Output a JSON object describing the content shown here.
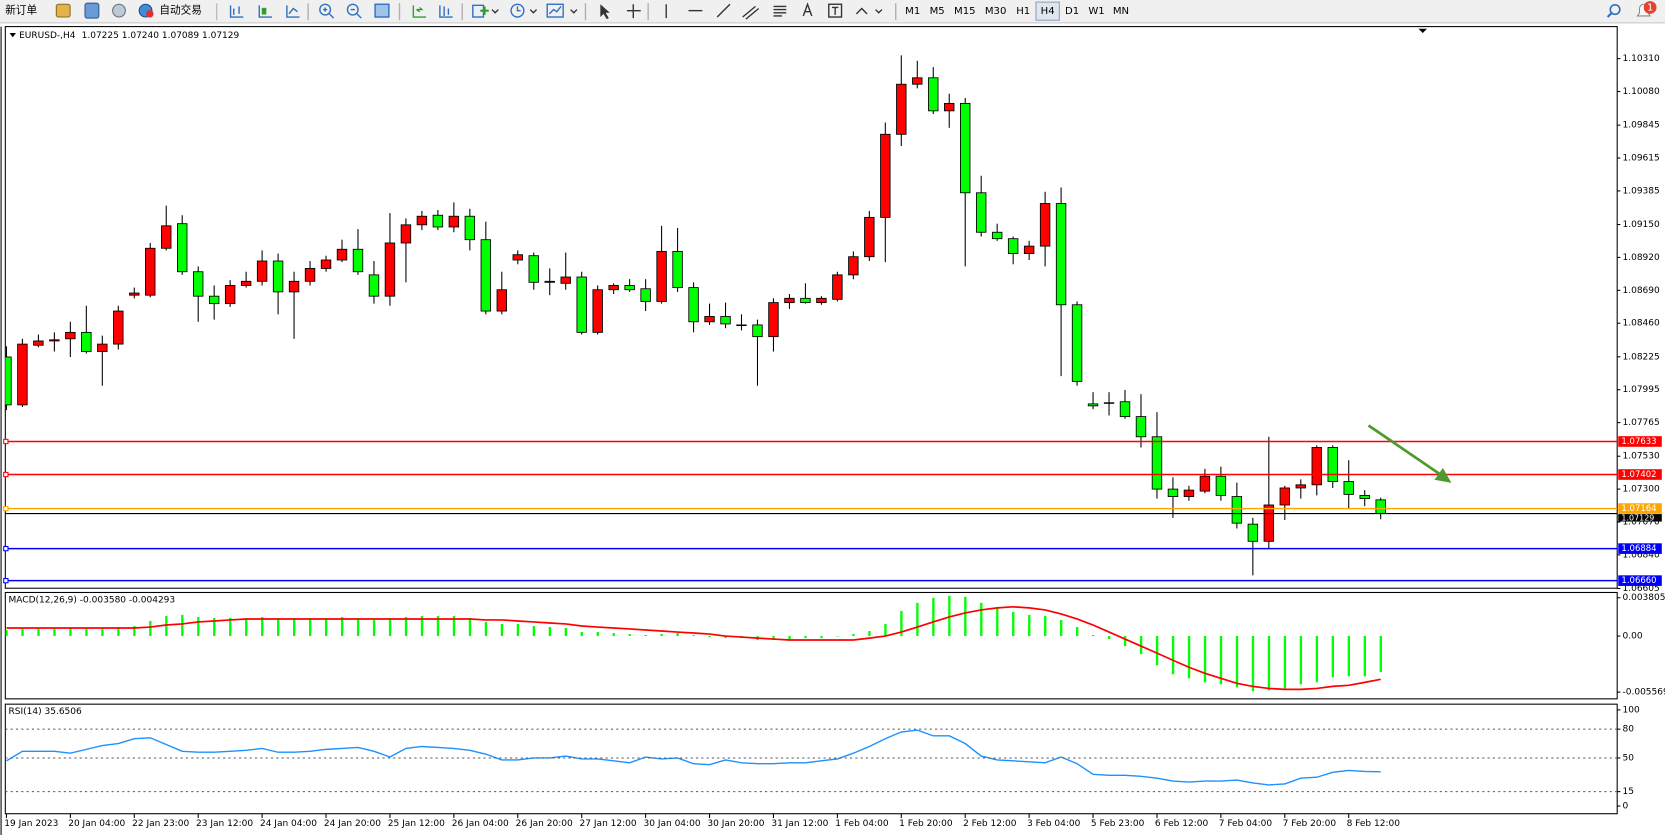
{
  "toolbar": {
    "new_order": "新订单",
    "auto_trading": "自动交易",
    "timeframes": [
      "M1",
      "M5",
      "M15",
      "M30",
      "H1",
      "H4",
      "D1",
      "W1",
      "MN"
    ],
    "active_timeframe": "H4",
    "badge": "1"
  },
  "chart_data": [
    {
      "type": "candlestick",
      "title": "EURUSD-,H4",
      "subtitle": "1.07225 1.07240 1.07089 1.07129",
      "up_color": "#ff0000",
      "down_color": "#00ff00",
      "ohlc": [
        [
          1.08224,
          1.08299,
          1.07852,
          1.07889
        ],
        [
          1.07889,
          1.08351,
          1.07874,
          1.08314
        ],
        [
          1.08306,
          1.08381,
          1.08291,
          1.08336
        ],
        [
          1.08336,
          1.08396,
          1.08262,
          1.08344
        ],
        [
          1.08351,
          1.0847,
          1.08224,
          1.08396
        ],
        [
          1.08396,
          1.08582,
          1.08247,
          1.08262
        ],
        [
          1.08262,
          1.08373,
          1.08023,
          1.08314
        ],
        [
          1.08314,
          1.08582,
          1.08276,
          1.08545
        ],
        [
          1.08656,
          1.08709,
          1.08634,
          1.08671
        ],
        [
          1.08656,
          1.09021,
          1.08641,
          1.08984
        ],
        [
          1.08984,
          1.09282,
          1.08969,
          1.09141
        ],
        [
          1.09156,
          1.09215,
          1.08798,
          1.0882
        ],
        [
          1.0882,
          1.08857,
          1.0847,
          1.08649
        ],
        [
          1.08649,
          1.08724,
          1.08485,
          1.08597
        ],
        [
          1.08597,
          1.08761,
          1.08574,
          1.08724
        ],
        [
          1.08724,
          1.0882,
          1.08709,
          1.08753
        ],
        [
          1.08753,
          1.08969,
          1.08724,
          1.08895
        ],
        [
          1.08895,
          1.08947,
          1.08522,
          1.08679
        ],
        [
          1.08679,
          1.0882,
          1.08351,
          1.08753
        ],
        [
          1.08753,
          1.08895,
          1.08724,
          1.08843
        ],
        [
          1.08843,
          1.08932,
          1.0882,
          1.08902
        ],
        [
          1.08902,
          1.09044,
          1.08887,
          1.08977
        ],
        [
          1.08977,
          1.09118,
          1.08798,
          1.0882
        ],
        [
          1.08798,
          1.08895,
          1.08597,
          1.08649
        ],
        [
          1.08649,
          1.0923,
          1.08582,
          1.09021
        ],
        [
          1.09021,
          1.09193,
          1.08746,
          1.09148
        ],
        [
          1.09148,
          1.09245,
          1.09111,
          1.09208
        ],
        [
          1.09215,
          1.09252,
          1.09111,
          1.09133
        ],
        [
          1.09133,
          1.09305,
          1.09096,
          1.09208
        ],
        [
          1.09208,
          1.0926,
          1.08969,
          1.09044
        ],
        [
          1.09044,
          1.0917,
          1.08522,
          1.08545
        ],
        [
          1.08545,
          1.0882,
          1.08522,
          1.08694
        ],
        [
          1.08902,
          1.08969,
          1.08872,
          1.08939
        ],
        [
          1.08932,
          1.08954,
          1.08694,
          1.08746
        ],
        [
          1.08746,
          1.08843,
          1.08656,
          1.08753
        ],
        [
          1.08739,
          1.08954,
          1.08694,
          1.08783
        ],
        [
          1.08783,
          1.0882,
          1.08381,
          1.08396
        ],
        [
          1.08396,
          1.08724,
          1.08381,
          1.08694
        ],
        [
          1.08694,
          1.08739,
          1.08664,
          1.08724
        ],
        [
          1.08724,
          1.08768,
          1.08679,
          1.08694
        ],
        [
          1.08701,
          1.08768,
          1.08545,
          1.08612
        ],
        [
          1.08612,
          1.09141,
          1.08597,
          1.08962
        ],
        [
          1.08962,
          1.09126,
          1.08679,
          1.08709
        ],
        [
          1.08709,
          1.08746,
          1.08396,
          1.0847
        ],
        [
          1.0847,
          1.08597,
          1.08448,
          1.08507
        ],
        [
          1.08507,
          1.08604,
          1.08425,
          1.08455
        ],
        [
          1.08448,
          1.08522,
          1.0841,
          1.08448
        ],
        [
          1.08448,
          1.08485,
          1.08023,
          1.08366
        ],
        [
          1.08366,
          1.08634,
          1.08262,
          1.08604
        ],
        [
          1.08604,
          1.08664,
          1.0856,
          1.08634
        ],
        [
          1.08634,
          1.08739,
          1.08597,
          1.08604
        ],
        [
          1.08604,
          1.08649,
          1.08589,
          1.08634
        ],
        [
          1.08627,
          1.0882,
          1.08612,
          1.08798
        ],
        [
          1.08798,
          1.08962,
          1.08768,
          1.08925
        ],
        [
          1.08925,
          1.09245,
          1.08895,
          1.092
        ],
        [
          1.092,
          1.09863,
          1.08887,
          1.09781
        ],
        [
          1.09781,
          1.10333,
          1.09699,
          1.10131
        ],
        [
          1.10131,
          1.10295,
          1.10102,
          1.10176
        ],
        [
          1.10176,
          1.10251,
          1.09923,
          1.09945
        ],
        [
          1.09945,
          1.10064,
          1.09826,
          1.09997
        ],
        [
          1.09997,
          1.10035,
          1.08857,
          1.09372
        ],
        [
          1.09372,
          1.09491,
          1.09066,
          1.09096
        ],
        [
          1.09096,
          1.09156,
          1.09036,
          1.09051
        ],
        [
          1.09051,
          1.09066,
          1.08872,
          1.08947
        ],
        [
          1.08947,
          1.09036,
          1.08902,
          1.08999
        ],
        [
          1.08999,
          1.09379,
          1.08857,
          1.09297
        ],
        [
          1.09297,
          1.09409,
          1.0809,
          1.08589
        ],
        [
          1.08589,
          1.08612,
          1.08023,
          1.08053
        ],
        [
          1.07896,
          1.07978,
          1.07859,
          1.07882
        ],
        [
          1.07904,
          1.07978,
          1.07815,
          1.07904
        ],
        [
          1.07911,
          1.07993,
          1.07792,
          1.07807
        ],
        [
          1.07807,
          1.07964,
          1.07591,
          1.07666
        ],
        [
          1.07666,
          1.07838,
          1.07234,
          1.073
        ],
        [
          1.073,
          1.07382,
          1.07099,
          1.07248
        ],
        [
          1.07248,
          1.07323,
          1.07219,
          1.07293
        ],
        [
          1.07286,
          1.07442,
          1.07271,
          1.0739
        ],
        [
          1.0739,
          1.07457,
          1.07219,
          1.07256
        ],
        [
          1.07248,
          1.07345,
          1.07025,
          1.07062
        ],
        [
          1.07055,
          1.07099,
          1.06697,
          1.06935
        ],
        [
          1.06935,
          1.07666,
          1.06883,
          1.07189
        ],
        [
          1.07189,
          1.07323,
          1.07084,
          1.07308
        ],
        [
          1.07308,
          1.07368,
          1.07234,
          1.0733
        ],
        [
          1.0733,
          1.07606,
          1.07256,
          1.07591
        ],
        [
          1.07591,
          1.07606,
          1.07308,
          1.07353
        ],
        [
          1.07353,
          1.07502,
          1.07159,
          1.07263
        ],
        [
          1.07256,
          1.07293,
          1.07181,
          1.07234
        ],
        [
          1.07225,
          1.0724,
          1.07089,
          1.07129
        ]
      ],
      "xlim": [
        -0.07,
        100.8
      ],
      "xticks": [
        {
          "value": 0,
          "label": "19 Jan 2023"
        },
        {
          "value": 4,
          "label": "20 Jan 04:00"
        },
        {
          "value": 8,
          "label": "22 Jan 23:00"
        },
        {
          "value": 12,
          "label": "23 Jan 12:00"
        },
        {
          "value": 16,
          "label": "24 Jan 04:00"
        },
        {
          "value": 20,
          "label": "24 Jan 20:00"
        },
        {
          "value": 24,
          "label": "25 Jan 12:00"
        },
        {
          "value": 28,
          "label": "26 Jan 04:00"
        },
        {
          "value": 32,
          "label": "26 Jan 20:00"
        },
        {
          "value": 36,
          "label": "27 Jan 12:00"
        },
        {
          "value": 40,
          "label": "30 Jan 04:00"
        },
        {
          "value": 44,
          "label": "30 Jan 20:00"
        },
        {
          "value": 48,
          "label": "31 Jan 12:00"
        },
        {
          "value": 52,
          "label": "1 Feb 04:00"
        },
        {
          "value": 56,
          "label": "1 Feb 20:00"
        },
        {
          "value": 60,
          "label": "2 Feb 12:00"
        },
        {
          "value": 64,
          "label": "3 Feb 04:00"
        },
        {
          "value": 68,
          "label": "5 Feb 23:00"
        },
        {
          "value": 72,
          "label": "6 Feb 12:00"
        },
        {
          "value": 76,
          "label": "7 Feb 04:00"
        },
        {
          "value": 80,
          "label": "7 Feb 20:00"
        },
        {
          "value": 84,
          "label": "8 Feb 12:00"
        }
      ],
      "ylim": [
        1.06607,
        1.10534
      ],
      "yticks": [
        {
          "value": 1.1031,
          "label": "1.10310"
        },
        {
          "value": 1.1008,
          "label": "1.10080"
        },
        1.09845,
        {
          "value": 1.09615,
          "label": "1.09615"
        },
        1.09385,
        {
          "value": 1.0915,
          "label": "1.09150"
        },
        {
          "value": 1.0892,
          "label": "1.08920"
        },
        {
          "value": 1.0869,
          "label": "1.08690"
        },
        {
          "value": 1.0846,
          "label": "1.08460"
        },
        1.08225,
        1.07995,
        1.07765,
        {
          "value": 1.0753,
          "label": "1.07530"
        },
        {
          "value": 1.073,
          "label": "1.07300"
        },
        {
          "value": 1.0707,
          "label": "1.07070"
        },
        {
          "value": 1.0684,
          "label": "1.06840"
        },
        1.06605
      ],
      "levels": [
        {
          "value": 1.07633,
          "color": "#ff0000"
        },
        {
          "value": 1.07402,
          "color": "#ff0000"
        },
        {
          "value": 1.07164,
          "color": "#ffa500"
        },
        {
          "value": 1.06884,
          "color": "#0000ff"
        },
        {
          "value": 1.0666,
          "label": "1.06660",
          "color": "#0000ff"
        }
      ],
      "current_price": 1.07129
    },
    {
      "type": "macd",
      "title": "MACD(12,26,9) -0.003580 -0.004293",
      "histogram": {
        "color": "#00ff00",
        "values": [
          0.0006,
          0.0007,
          0.0007,
          0.0007,
          0.0008,
          0.0007,
          0.0007,
          0.0009,
          0.001,
          0.0015,
          0.002,
          0.0021,
          0.0019,
          0.0018,
          0.0018,
          0.0018,
          0.0019,
          0.0018,
          0.0018,
          0.0018,
          0.0018,
          0.0019,
          0.0018,
          0.0016,
          0.0018,
          0.0019,
          0.002,
          0.002,
          0.002,
          0.0018,
          0.0014,
          0.0012,
          0.0012,
          0.001,
          0.0009,
          0.0008,
          0.0004,
          0.0004,
          0.0003,
          0.0002,
          0.0001,
          0.0002,
          0.0003,
          0.0001,
          -0.0001,
          -0.0002,
          -0.0002,
          -0.0004,
          -0.0004,
          -0.0003,
          -0.0002,
          -0.0002,
          0,
          0.0002,
          0.0005,
          0.0012,
          0.0025,
          0.0033,
          0.0038,
          0.004,
          0.0039,
          0.0033,
          0.0028,
          0.0024,
          0.0021,
          0.002,
          0.0016,
          0.0009,
          0.0001,
          -0.0003,
          -0.001,
          -0.0018,
          -0.0029,
          -0.0038,
          -0.0042,
          -0.0046,
          -0.0048,
          -0.0051,
          -0.0055,
          -0.0054,
          -0.0052,
          -0.0048,
          -0.0046,
          -0.0041,
          -0.004,
          -0.004,
          -0.00358
        ]
      },
      "signal": {
        "color": "#ff0000",
        "values": [
          0.0008,
          0.0008,
          0.0008,
          0.0008,
          0.0008,
          0.0008,
          0.0008,
          0.0008,
          0.0008,
          0.0009,
          0.0011,
          0.0012,
          0.0014,
          0.0015,
          0.0016,
          0.0017,
          0.0017,
          0.0017,
          0.0017,
          0.0017,
          0.0017,
          0.0017,
          0.0017,
          0.0017,
          0.0017,
          0.0017,
          0.0017,
          0.0017,
          0.0017,
          0.0017,
          0.0016,
          0.0016,
          0.0015,
          0.0014,
          0.0013,
          0.0012,
          0.001,
          0.0009,
          0.0008,
          0.0007,
          0.0006,
          0.0005,
          0.0004,
          0.0003,
          0.0002,
          0,
          -0.0001,
          -0.0002,
          -0.0003,
          -0.0004,
          -0.0004,
          -0.0004,
          -0.0004,
          -0.0004,
          -0.0002,
          0,
          0.0004,
          0.0009,
          0.0014,
          0.0019,
          0.0023,
          0.0026,
          0.0028,
          0.0029,
          0.0028,
          0.0026,
          0.0022,
          0.0017,
          0.0011,
          0.0004,
          -0.0003,
          -0.001,
          -0.0017,
          -0.0024,
          -0.0031,
          -0.0037,
          -0.0042,
          -0.0047,
          -0.005,
          -0.0052,
          -0.0053,
          -0.0053,
          -0.0052,
          -0.005,
          -0.0049,
          -0.0046,
          -0.004293
        ]
      },
      "ylim": [
        -0.00624,
        0.00433
      ],
      "yticks": [
        0.003805,
        {
          "value": 0,
          "label": "0.00"
        },
        -0.005569
      ]
    },
    {
      "type": "line",
      "title": "RSI(14) 35.6506",
      "color": "#1e90ff",
      "values": [
        47,
        57,
        57,
        57,
        55,
        59,
        63,
        65,
        70,
        71,
        64,
        57,
        56,
        56,
        57,
        58,
        60,
        56,
        56,
        57,
        59,
        60,
        61,
        57,
        51,
        60,
        62,
        61,
        60,
        58,
        54,
        48,
        48,
        50,
        50,
        52,
        49,
        49,
        47,
        45,
        51,
        49,
        50,
        44,
        43,
        48,
        45,
        44,
        44,
        45,
        45,
        47,
        49,
        55,
        62,
        70,
        77,
        79,
        73,
        73,
        65,
        52,
        48,
        47,
        46,
        45,
        51,
        44,
        33,
        32,
        32,
        31,
        29,
        26,
        25,
        26,
        26,
        27,
        24,
        22,
        23,
        29,
        30,
        35,
        37,
        36,
        35.6506
      ],
      "ylim": [
        -8,
        106
      ],
      "yticks": [
        100,
        80,
        50,
        15,
        0
      ]
    }
  ]
}
